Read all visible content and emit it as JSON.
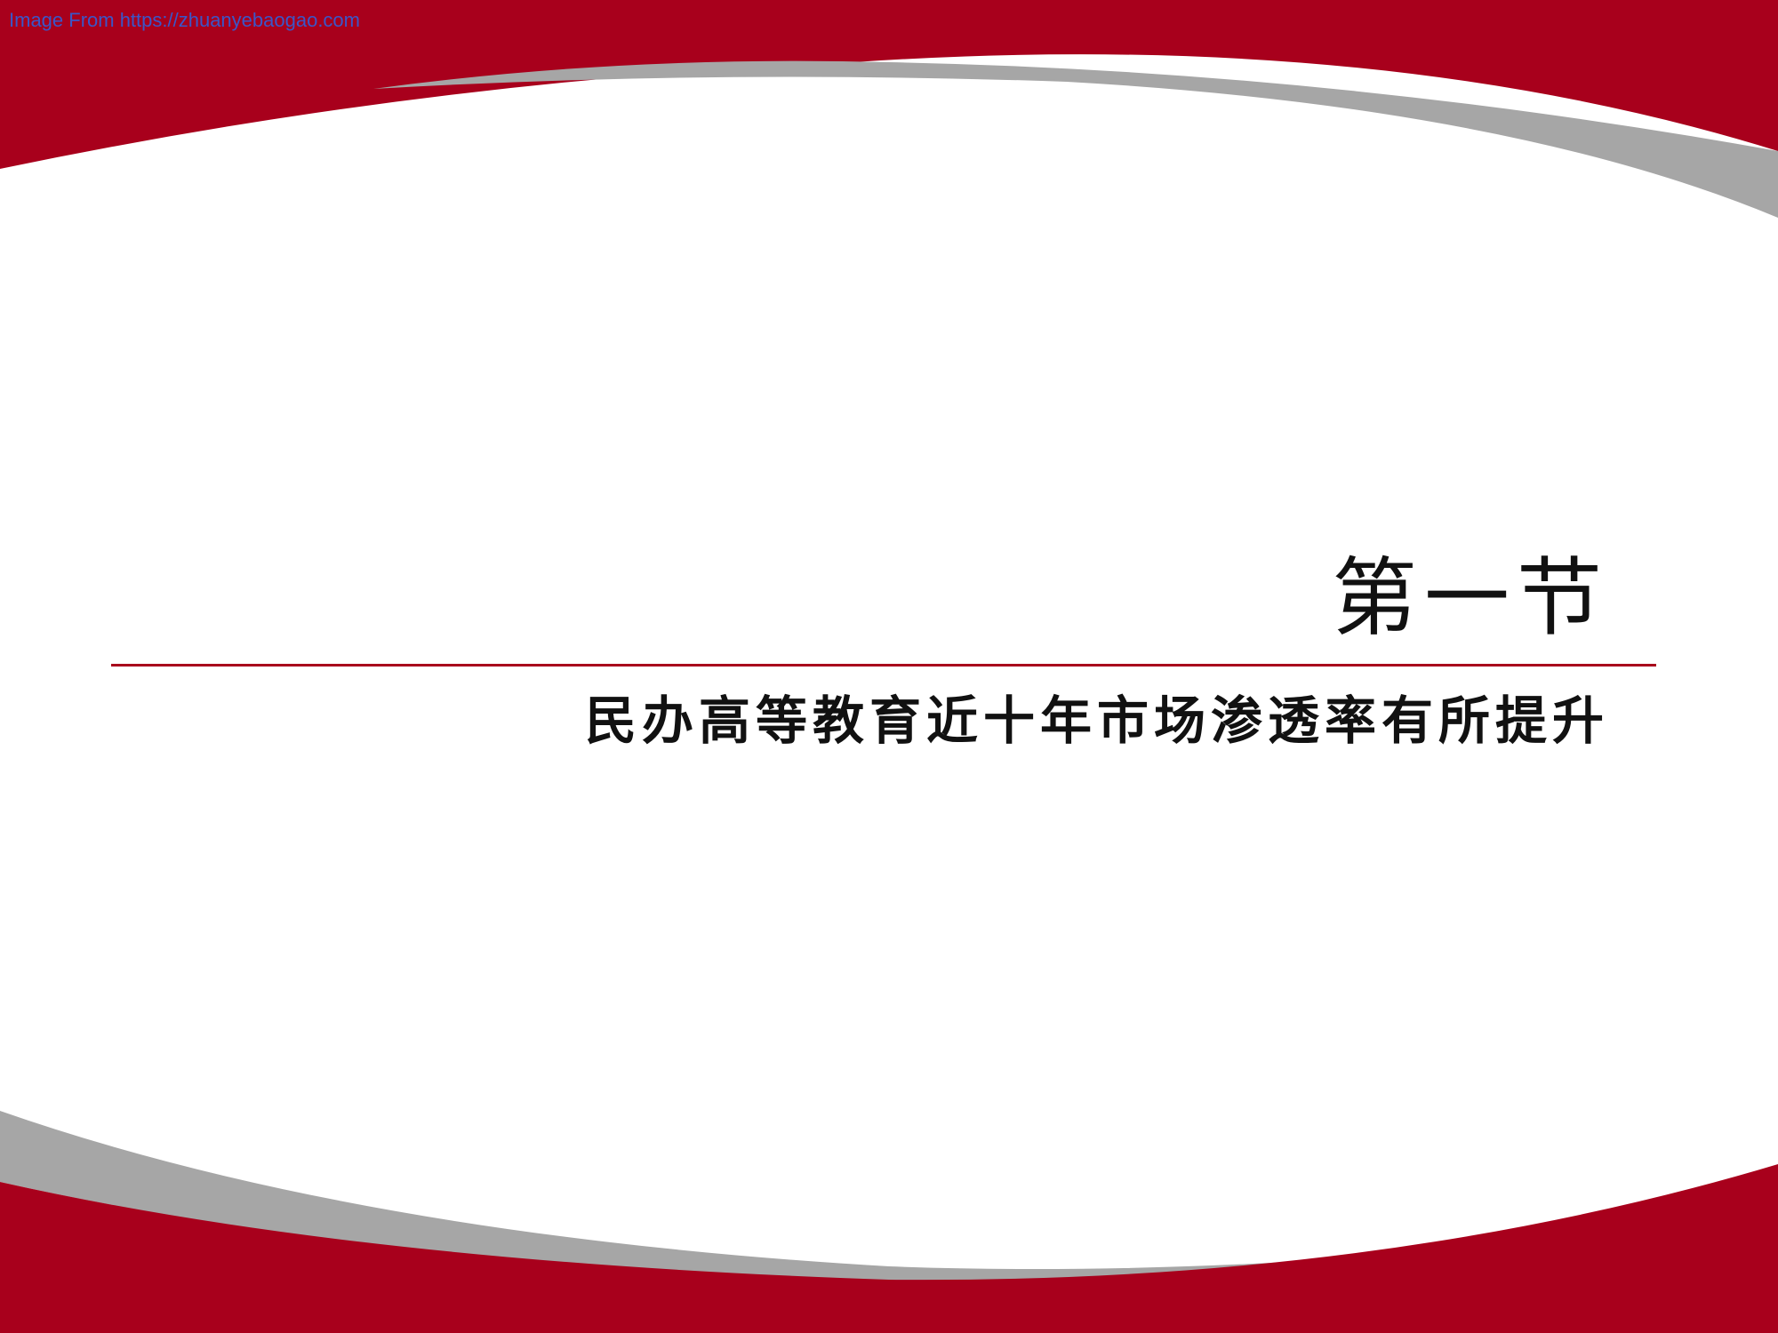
{
  "watermark": "Image From https://zhuanyebaogao.com",
  "slide": {
    "section_number": "第一节",
    "section_title": "民办高等教育近十年市场渗透率有所提升"
  },
  "colors": {
    "brand_red": "#a8001c",
    "swoosh_gray": "#a6a6a6",
    "watermark_blue": "#3a56c8"
  }
}
